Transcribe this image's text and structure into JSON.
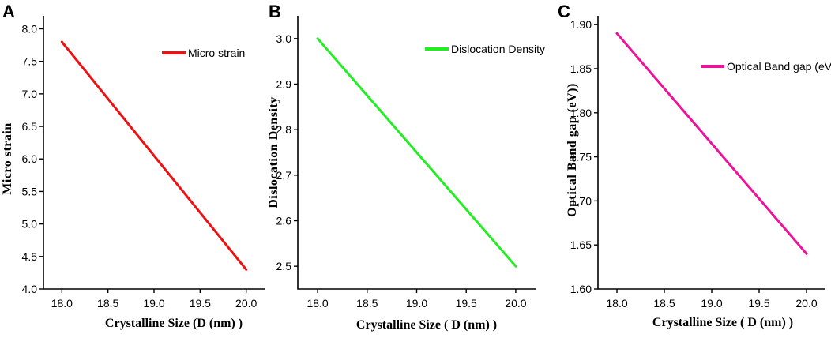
{
  "chart_data": [
    {
      "type": "line",
      "panel_label": "A",
      "xlabel": "Crystalline Size  (D (nm) )",
      "ylabel": "Micro strain",
      "x_ticks": [
        "18.0",
        "18.5",
        "19.0",
        "19.5",
        "20.0"
      ],
      "y_ticks": [
        "4.0",
        "4.5",
        "5.0",
        "5.5",
        "6.0",
        "6.5",
        "7.0",
        "7.5",
        "8.0"
      ],
      "xlim": [
        17.8,
        20.2
      ],
      "ylim": [
        4.0,
        8.2
      ],
      "series": [
        {
          "name": "Micro strain",
          "x": [
            18.0,
            20.0
          ],
          "y": [
            7.8,
            4.3
          ],
          "color": "#ee1111"
        }
      ]
    },
    {
      "type": "line",
      "panel_label": "B",
      "xlabel": "Crystalline Size ( D (nm) )",
      "ylabel": "Dislocation Density",
      "x_ticks": [
        "18.0",
        "18.5",
        "19.0",
        "19.5",
        "20.0"
      ],
      "y_ticks": [
        "2.5",
        "2.6",
        "2.7",
        "2.8",
        "2.9",
        "3.0"
      ],
      "xlim": [
        17.8,
        20.2
      ],
      "ylim": [
        2.45,
        3.05
      ],
      "series": [
        {
          "name": "Dislocation Density",
          "x": [
            18.0,
            20.0
          ],
          "y": [
            3.0,
            2.5
          ],
          "color": "#22ee22"
        }
      ]
    },
    {
      "type": "line",
      "panel_label": "C",
      "xlabel": "Crystalline Size ( D (nm) )",
      "ylabel": "Optical Band gap (eV))",
      "x_ticks": [
        "18.0",
        "18.5",
        "19.0",
        "19.5",
        "20.0"
      ],
      "y_ticks": [
        "1.60",
        "1.65",
        "1.70",
        "1.75",
        "1.80",
        "1.85",
        "1.90"
      ],
      "xlim": [
        17.8,
        20.2
      ],
      "ylim": [
        1.6,
        1.91
      ],
      "series": [
        {
          "name": "Optical Band gap (eV)",
          "x": [
            18.0,
            20.0
          ],
          "y": [
            1.89,
            1.64
          ],
          "color": "#ee1199"
        }
      ]
    }
  ]
}
